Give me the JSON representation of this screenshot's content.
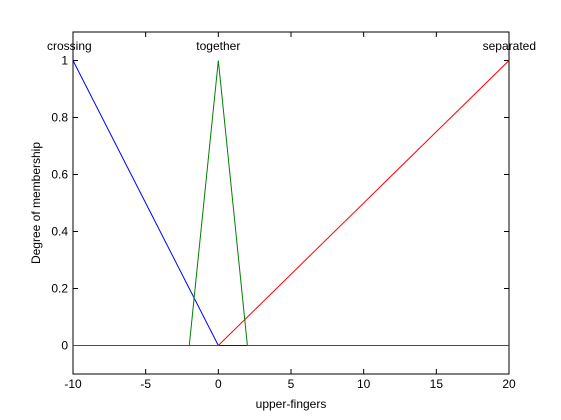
{
  "chart_data": {
    "type": "line",
    "title": "",
    "xlabel": "upper-fingers",
    "ylabel": "Degree of membership",
    "xlim": [
      -10,
      20
    ],
    "ylim": [
      -0.1,
      1.1
    ],
    "grid": false,
    "xticks": [
      -10,
      -5,
      0,
      5,
      10,
      15,
      20
    ],
    "yticks": [
      0,
      0.2,
      0.4,
      0.6,
      0.8,
      1
    ],
    "xtick_labels": [
      "-10",
      "-5",
      "0",
      "5",
      "10",
      "15",
      "20"
    ],
    "ytick_labels": [
      "0",
      "0.2",
      "0.4",
      "0.6",
      "0.8",
      "1"
    ],
    "series": [
      {
        "name": "crossing",
        "color": "#0000ff",
        "x": [
          -10,
          0,
          20
        ],
        "y": [
          1,
          0,
          0
        ]
      },
      {
        "name": "together",
        "color": "#008000",
        "x": [
          -10,
          -2,
          0,
          2,
          20
        ],
        "y": [
          0,
          0,
          1,
          0,
          0
        ]
      },
      {
        "name": "separated",
        "color": "#ff0000",
        "x": [
          -10,
          0,
          20
        ],
        "y": [
          0,
          0,
          1
        ]
      }
    ]
  }
}
